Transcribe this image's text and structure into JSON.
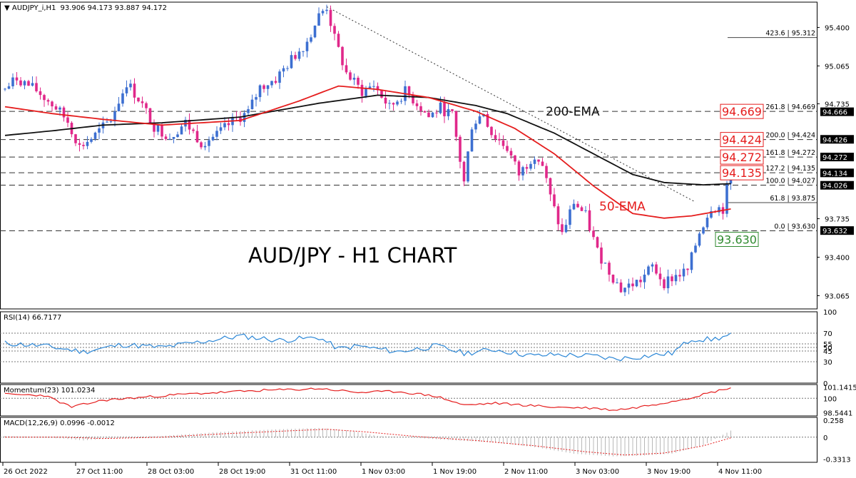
{
  "header": {
    "symbol": "AUDJPY_i,H1",
    "ohlc": "93.906 94.173 93.887 94.172"
  },
  "title": "AUD/JPY - H1 CHART",
  "ema_labels": {
    "ema200": "200-EMA",
    "ema50": "50-EMA"
  },
  "colors": {
    "bull": "#3d6fd1",
    "bear": "#e0288a",
    "ema50": "#e51d1d",
    "ema200": "#111111",
    "rsi": "#2a86d6",
    "momentum": "#e51d1d",
    "macd_signal": "#e51d1d",
    "macd_hist": "#b8b8b8",
    "grid": "#999999",
    "fib_box": "#e51d1d",
    "support_box": "#2f8a2f"
  },
  "chart_data": [
    {
      "type": "candlestick",
      "name": "price",
      "ylim": [
        92.95,
        95.62
      ],
      "y_ticks": [
        "95.400",
        "95.065",
        "94.735",
        "93.735",
        "93.400",
        "93.065"
      ],
      "x_ticks": [
        "26 Oct 2022",
        "27 Oct 11:00",
        "28 Oct 03:00",
        "28 Oct 19:00",
        "31 Oct 11:00",
        "1 Nov 03:00",
        "1 Nov 19:00",
        "2 Nov 11:00",
        "3 Nov 03:00",
        "3 Nov 19:00",
        "4 Nov 11:00"
      ],
      "price_path": [
        [
          0,
          94.86
        ],
        [
          3,
          94.96
        ],
        [
          8,
          94.85
        ],
        [
          13,
          94.7
        ],
        [
          16,
          94.58
        ],
        [
          19,
          94.36
        ],
        [
          23,
          94.46
        ],
        [
          27,
          94.6
        ],
        [
          31,
          94.92
        ],
        [
          34,
          94.78
        ],
        [
          38,
          94.54
        ],
        [
          42,
          94.45
        ],
        [
          46,
          94.57
        ],
        [
          50,
          94.4
        ],
        [
          54,
          94.46
        ],
        [
          58,
          94.58
        ],
        [
          62,
          94.66
        ],
        [
          65,
          94.88
        ],
        [
          69,
          94.95
        ],
        [
          73,
          95.12
        ],
        [
          77,
          95.28
        ],
        [
          80,
          95.5
        ],
        [
          82,
          95.58
        ],
        [
          84,
          95.3
        ],
        [
          87,
          95.0
        ],
        [
          91,
          94.84
        ],
        [
          94,
          94.9
        ],
        [
          98,
          94.7
        ],
        [
          102,
          94.84
        ],
        [
          105,
          94.74
        ],
        [
          108,
          94.62
        ],
        [
          111,
          94.7
        ],
        [
          114,
          94.63
        ],
        [
          117,
          94.05
        ],
        [
          119,
          94.55
        ],
        [
          122,
          94.66
        ],
        [
          124,
          94.48
        ],
        [
          128,
          94.35
        ],
        [
          131,
          94.12
        ],
        [
          135,
          94.3
        ],
        [
          137,
          94.2
        ],
        [
          139,
          93.92
        ],
        [
          142,
          93.6
        ],
        [
          145,
          93.88
        ],
        [
          148,
          93.76
        ],
        [
          151,
          93.45
        ],
        [
          154,
          93.28
        ],
        [
          157,
          93.12
        ],
        [
          159,
          93.15
        ],
        [
          162,
          93.2
        ],
        [
          165,
          93.32
        ],
        [
          168,
          93.18
        ],
        [
          171,
          93.24
        ],
        [
          174,
          93.28
        ],
        [
          177,
          93.62
        ],
        [
          180,
          93.84
        ],
        [
          183,
          93.82
        ],
        [
          185,
          94.17
        ]
      ],
      "series": [
        {
          "name": "200-EMA",
          "x": [
            0,
            12,
            25,
            40,
            60,
            80,
            95,
            108,
            120,
            128,
            140,
            150,
            160,
            168,
            178,
            185
          ],
          "values": [
            94.46,
            94.5,
            94.55,
            94.57,
            94.62,
            94.74,
            94.81,
            94.79,
            94.72,
            94.65,
            94.48,
            94.3,
            94.12,
            94.05,
            94.03,
            94.04
          ]
        },
        {
          "name": "50-EMA",
          "x": [
            0,
            12,
            25,
            40,
            60,
            75,
            85,
            95,
            108,
            120,
            130,
            140,
            150,
            160,
            168,
            175,
            180,
            185
          ],
          "values": [
            94.71,
            94.65,
            94.6,
            94.55,
            94.59,
            94.76,
            94.89,
            94.86,
            94.79,
            94.67,
            94.52,
            94.3,
            94.02,
            93.78,
            93.74,
            93.76,
            93.79,
            93.82
          ]
        }
      ],
      "fibonacci": [
        {
          "level": "423.6",
          "price": 95.312,
          "label": "423.6 | 95.312"
        },
        {
          "level": "261.8",
          "price": 94.669,
          "label": "261.8 | 94.669"
        },
        {
          "level": "200.0",
          "price": 94.424,
          "label": "200.0 | 94.424"
        },
        {
          "level": "161.8",
          "price": 94.272,
          "label": "161.8 | 94.272"
        },
        {
          "level": "127.2",
          "price": 94.135,
          "label": "127.2 | 94.135"
        },
        {
          "level": "100.0",
          "price": 94.027,
          "label": "100.0 | 94.027"
        },
        {
          "level": "61.8",
          "price": 93.875,
          "label": "61.8 | 93.875"
        },
        {
          "level": "0.0",
          "price": 93.63,
          "label": "0.0 | 93.630"
        }
      ],
      "boxed_labels": [
        {
          "price": 94.669,
          "text": "94.669",
          "kind": "resistance"
        },
        {
          "price": 94.424,
          "text": "94.424",
          "kind": "resistance"
        },
        {
          "price": 94.272,
          "text": "94.272",
          "kind": "resistance"
        },
        {
          "price": 94.135,
          "text": "94.135",
          "kind": "resistance"
        },
        {
          "price": 93.63,
          "text": "93.630",
          "kind": "support"
        }
      ],
      "axis_tags": [
        {
          "price": 94.666,
          "text": "94.666"
        },
        {
          "price": 94.426,
          "text": "94.426"
        },
        {
          "price": 94.272,
          "text": "94.272"
        },
        {
          "price": 94.134,
          "text": "94.134"
        },
        {
          "price": 94.026,
          "text": "94.026"
        },
        {
          "price": 93.632,
          "text": "93.632"
        }
      ],
      "trendline": [
        [
          82,
          95.58
        ],
        [
          176,
          93.88
        ]
      ]
    },
    {
      "type": "line",
      "name": "RSI(14)",
      "header": "RSI(14) 66.7177",
      "ylim": [
        0,
        100
      ],
      "y_ticks": [
        "100",
        "70",
        "55",
        "50",
        "45",
        "30",
        "0"
      ],
      "levels": [
        70,
        55,
        50,
        45,
        30
      ],
      "x": [
        0,
        10,
        20,
        30,
        40,
        50,
        60,
        70,
        80,
        85,
        90,
        100,
        110,
        117,
        125,
        135,
        140,
        150,
        155,
        160,
        170,
        175,
        180,
        185
      ],
      "values": [
        56,
        52,
        44,
        54,
        50,
        58,
        66,
        60,
        64,
        48,
        52,
        44,
        52,
        42,
        47,
        38,
        40,
        38,
        34,
        36,
        42,
        62,
        61,
        67
      ]
    },
    {
      "type": "line",
      "name": "Momentum(23)",
      "header": "Momentum(23) 101.0234",
      "ylim": [
        98.2,
        101.4
      ],
      "y_ticks": [
        "101.1415",
        "100",
        "98.5441"
      ],
      "levels": [
        100
      ],
      "x": [
        0,
        10,
        17,
        25,
        35,
        45,
        55,
        65,
        75,
        80,
        90,
        100,
        110,
        117,
        125,
        140,
        150,
        155,
        160,
        170,
        175,
        180,
        185
      ],
      "values": [
        100.4,
        100.3,
        99.1,
        99.8,
        100.1,
        100.4,
        100.6,
        100.8,
        100.9,
        101.0,
        100.6,
        100.7,
        100.2,
        99.3,
        99.5,
        99.1,
        99.0,
        98.8,
        99.0,
        99.7,
        100.1,
        100.6,
        101.1
      ]
    },
    {
      "type": "bar+line",
      "name": "MACD(12,26,9)",
      "header": "MACD(12,26,9) 0.0996 -0.0012",
      "ylim": [
        -0.38,
        0.3
      ],
      "y_ticks": [
        "0.258",
        "0",
        "-0.3313"
      ],
      "levels": [
        0
      ],
      "histogram_path": [
        [
          0,
          0.02
        ],
        [
          15,
          -0.02
        ],
        [
          20,
          -0.05
        ],
        [
          30,
          0.0
        ],
        [
          40,
          0.02
        ],
        [
          55,
          0.08
        ],
        [
          70,
          0.12
        ],
        [
          80,
          0.14
        ],
        [
          88,
          0.1
        ],
        [
          95,
          0.02
        ],
        [
          105,
          -0.01
        ],
        [
          115,
          -0.05
        ],
        [
          125,
          -0.08
        ],
        [
          135,
          -0.15
        ],
        [
          145,
          -0.25
        ],
        [
          155,
          -0.29
        ],
        [
          162,
          -0.28
        ],
        [
          170,
          -0.25
        ],
        [
          178,
          -0.12
        ],
        [
          185,
          0.1
        ]
      ],
      "signal_path": [
        [
          0,
          0.0
        ],
        [
          15,
          0.0
        ],
        [
          25,
          -0.02
        ],
        [
          40,
          0.0
        ],
        [
          55,
          0.05
        ],
        [
          70,
          0.09
        ],
        [
          82,
          0.12
        ],
        [
          92,
          0.08
        ],
        [
          105,
          0.01
        ],
        [
          120,
          -0.05
        ],
        [
          135,
          -0.13
        ],
        [
          148,
          -0.22
        ],
        [
          158,
          -0.27
        ],
        [
          168,
          -0.24
        ],
        [
          178,
          -0.13
        ],
        [
          185,
          -0.01
        ]
      ]
    }
  ]
}
